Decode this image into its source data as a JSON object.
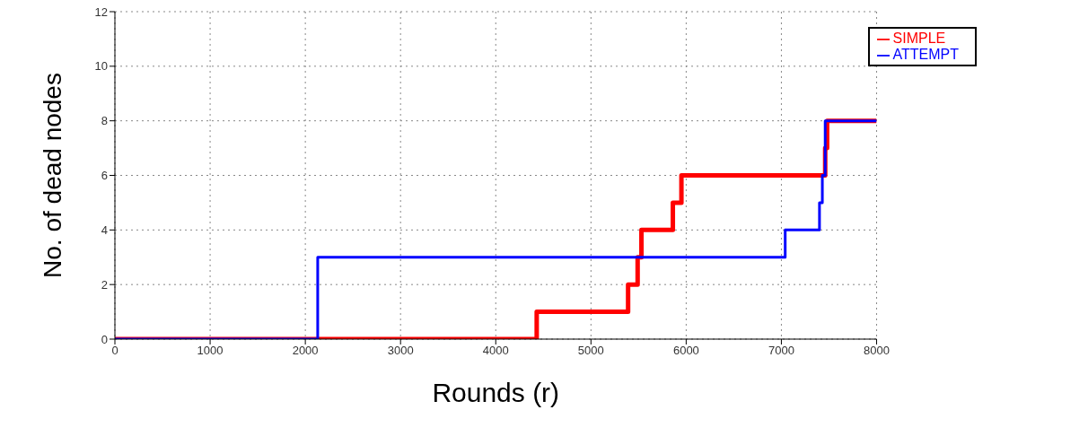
{
  "chart_data": {
    "type": "step",
    "xlabel": "Rounds (r)",
    "ylabel": "No. of dead nodes",
    "xlim": [
      0,
      8000
    ],
    "xticks": [
      0,
      1000,
      2000,
      3000,
      4000,
      5000,
      6000,
      7000,
      8000
    ],
    "ylim": [
      0,
      12
    ],
    "yticks": [
      0,
      2,
      4,
      6,
      8,
      10,
      12
    ],
    "grid": true,
    "legend": "top right",
    "line_style": "solid",
    "marker": "none",
    "series": [
      {
        "name": "SIMPLE",
        "color": "#ff0000",
        "x": [
          0,
          4430,
          5390,
          5490,
          5530,
          5860,
          5950,
          7460,
          7480,
          8000
        ],
        "values": [
          0,
          1,
          2,
          3,
          4,
          5,
          6,
          7,
          8,
          8
        ]
      },
      {
        "name": "ATTEMPT",
        "color": "#0000ff",
        "x": [
          0,
          2130,
          7040,
          7400,
          7430,
          7460,
          8000
        ],
        "values": [
          0,
          3,
          4,
          5,
          6,
          8,
          8
        ]
      }
    ]
  }
}
